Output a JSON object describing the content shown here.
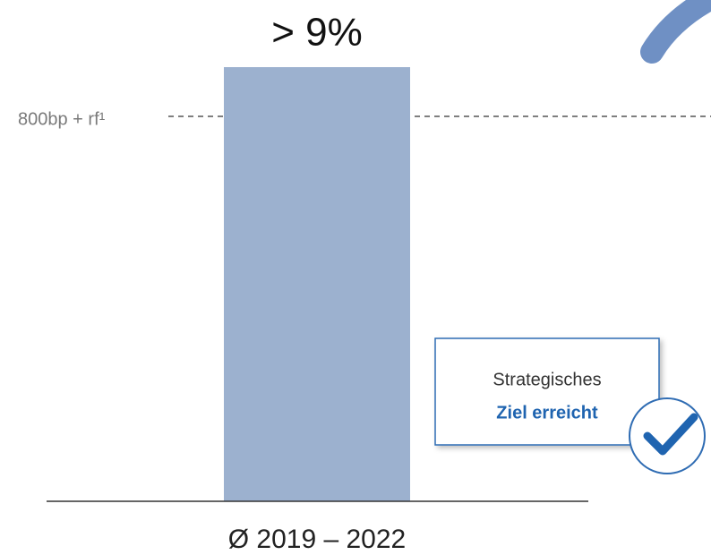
{
  "chart_data": {
    "type": "bar",
    "categories": [
      "Ø 2019 – 2022"
    ],
    "values": [
      9
    ],
    "value_labels": [
      "> 9%"
    ],
    "color": "#9cb1cf",
    "reference_label": "800bp + rf¹",
    "callout": {
      "line1": "Strategisches",
      "line2": "Ziel erreicht"
    }
  }
}
